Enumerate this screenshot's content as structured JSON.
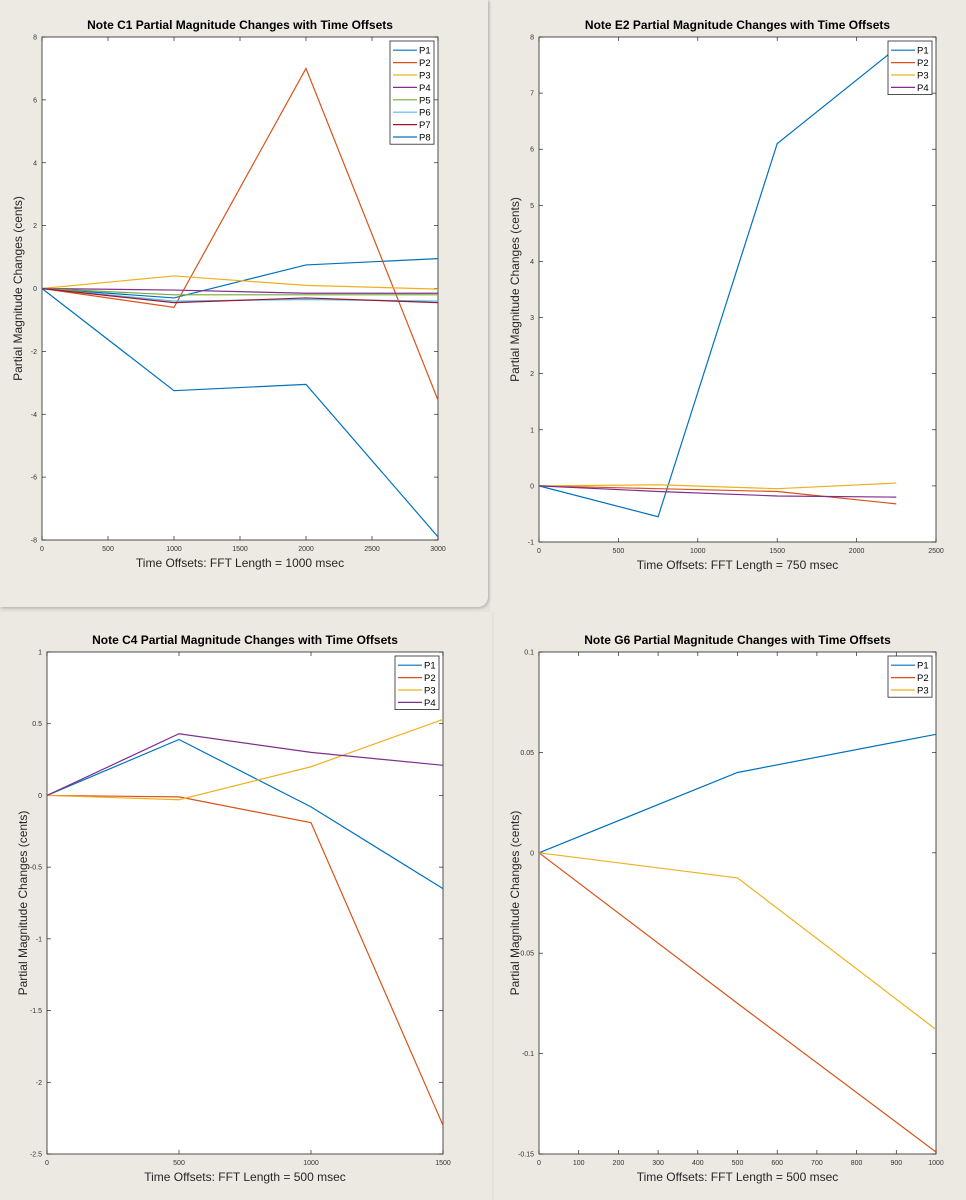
{
  "colors": {
    "P1": "#0072BD",
    "P2": "#D95319",
    "P3": "#EDB120",
    "P4": "#7E2F8E",
    "P5": "#77AC30",
    "P6": "#4DBEEE",
    "P7": "#A2142F",
    "P8": "#0072BD"
  },
  "chart_data": [
    {
      "type": "line",
      "title": "Note C1 Partial Magnitude Changes with Time Offsets",
      "xlabel": "Time Offsets: FFT Length = 1000 msec",
      "ylabel": "Partial Magnitude Changes (cents)",
      "xlim": [
        0,
        3000
      ],
      "ylim": [
        -8,
        8
      ],
      "xticks": [
        0,
        500,
        1000,
        1500,
        2000,
        2500,
        3000
      ],
      "yticks": [
        -8,
        -6,
        -4,
        -2,
        0,
        2,
        4,
        6,
        8
      ],
      "legend_position": "top-right",
      "x": [
        0,
        1000,
        2000,
        3000
      ],
      "series": [
        {
          "name": "P1",
          "values": [
            0,
            -0.3,
            0.75,
            0.95
          ]
        },
        {
          "name": "P2",
          "values": [
            0,
            -0.6,
            7.0,
            -3.55
          ]
        },
        {
          "name": "P3",
          "values": [
            0,
            0.4,
            0.1,
            -0.02
          ]
        },
        {
          "name": "P4",
          "values": [
            0,
            -0.05,
            -0.15,
            -0.15
          ]
        },
        {
          "name": "P5",
          "values": [
            0,
            -0.2,
            -0.2,
            -0.2
          ]
        },
        {
          "name": "P6",
          "values": [
            0,
            -0.4,
            -0.35,
            -0.4
          ]
        },
        {
          "name": "P7",
          "values": [
            0,
            -0.45,
            -0.3,
            -0.45
          ]
        },
        {
          "name": "P8",
          "values": [
            0,
            -3.25,
            -3.05,
            -7.9
          ]
        }
      ]
    },
    {
      "type": "line",
      "title": "Note E2 Partial Magnitude Changes with Time Offsets",
      "xlabel": "Time Offsets: FFT Length = 750 msec",
      "ylabel": "Partial Magnitude Changes (cents)",
      "xlim": [
        0,
        2500
      ],
      "ylim": [
        -1,
        8
      ],
      "xticks": [
        0,
        500,
        1000,
        1500,
        2000,
        2500
      ],
      "yticks": [
        -1,
        0,
        1,
        2,
        3,
        4,
        5,
        6,
        7,
        8
      ],
      "legend_position": "top-right",
      "x": [
        0,
        750,
        1500,
        2250
      ],
      "series": [
        {
          "name": "P1",
          "values": [
            0,
            -0.55,
            6.1,
            7.8
          ]
        },
        {
          "name": "P2",
          "values": [
            0,
            -0.05,
            -0.1,
            -0.32
          ]
        },
        {
          "name": "P3",
          "values": [
            0,
            0.02,
            -0.05,
            0.05
          ]
        },
        {
          "name": "P4",
          "values": [
            0,
            -0.1,
            -0.18,
            -0.2
          ]
        }
      ]
    },
    {
      "type": "line",
      "title": "Note C4 Partial Magnitude Changes with Time Offsets",
      "xlabel": "Time Offsets: FFT Length = 500 msec",
      "ylabel": "Partial Magnitude Changes (cents)",
      "xlim": [
        0,
        1500
      ],
      "ylim": [
        -2.5,
        1
      ],
      "xticks": [
        0,
        500,
        1000,
        1500
      ],
      "yticks": [
        -2.5,
        -2,
        -1.5,
        -1,
        -0.5,
        0,
        0.5,
        1
      ],
      "legend_position": "top-right",
      "x": [
        0,
        500,
        1000,
        1500
      ],
      "series": [
        {
          "name": "P1",
          "values": [
            0,
            0.39,
            -0.08,
            -0.65
          ]
        },
        {
          "name": "P2",
          "values": [
            0,
            -0.01,
            -0.19,
            -2.3
          ]
        },
        {
          "name": "P3",
          "values": [
            0,
            -0.03,
            0.2,
            0.53
          ]
        },
        {
          "name": "P4",
          "values": [
            0,
            0.43,
            0.3,
            0.21
          ]
        }
      ]
    },
    {
      "type": "line",
      "title": "Note G6 Partial Magnitude Changes with Time Offsets",
      "xlabel": "Time Offsets: FFT Length = 500 msec",
      "ylabel": "Partial Magnitude Changes (cents)",
      "xlim": [
        0,
        1000
      ],
      "ylim": [
        -0.15,
        0.1
      ],
      "xticks": [
        0,
        100,
        200,
        300,
        400,
        500,
        600,
        700,
        800,
        900,
        1000
      ],
      "yticks": [
        -0.15,
        -0.1,
        -0.05,
        0,
        0.05,
        0.1
      ],
      "legend_position": "top-right",
      "x": [
        0,
        500,
        1000
      ],
      "series": [
        {
          "name": "P1",
          "values": [
            0,
            0.04,
            0.059
          ]
        },
        {
          "name": "P2",
          "values": [
            0,
            -0.075,
            -0.149
          ]
        },
        {
          "name": "P3",
          "values": [
            0,
            -0.0125,
            -0.088
          ]
        }
      ]
    }
  ]
}
